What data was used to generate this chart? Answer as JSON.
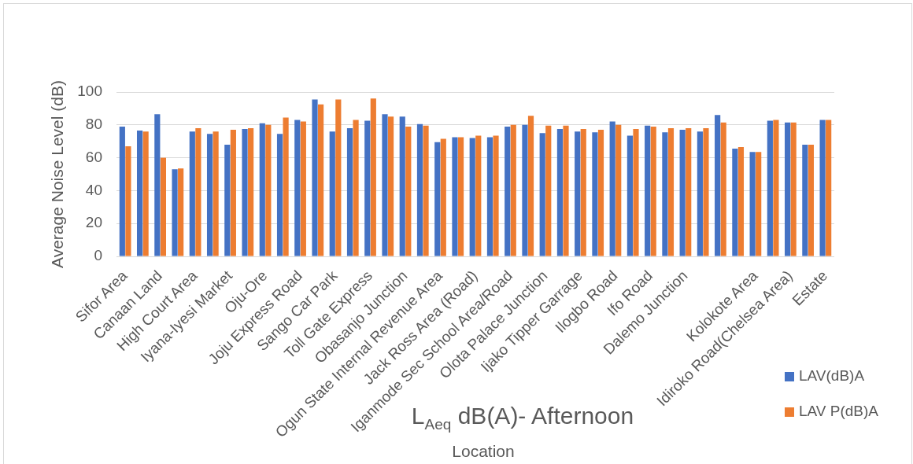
{
  "chart_data": {
    "type": "bar",
    "title": "L$_{Aeq}$ dB(A)- Afternoon",
    "xlabel": "Location",
    "ylabel": "Average Noise Level (dB)",
    "categories": [
      "Sifor Area",
      null,
      "Canaan Land",
      null,
      "High Court Area",
      null,
      "Iyana-Iyesi Market",
      null,
      "Oju-Ore",
      null,
      "Joju Express Road",
      null,
      "Sango Car Park",
      null,
      "Toll Gate Express",
      null,
      "Obasanjo Junction",
      null,
      "Ogun State Internal Revenue Area",
      null,
      "Jack Ross Area (Road)",
      null,
      "Iganmode Sec School Area/Road",
      null,
      "Olota Palace Junction",
      null,
      "Ijako Tipper Garrage",
      null,
      "Ilogbo Road",
      null,
      "Ifo Road",
      null,
      "Dalemo Junction",
      null,
      null,
      null,
      "Kolokote Area",
      null,
      "Idiroko Road(Chelsea Area)",
      null,
      "Estate"
    ],
    "series": [
      {
        "name": "LAV(dB)A",
        "color": "#4472c4",
        "values": [
          79,
          76.5,
          86.5,
          53,
          76,
          74.5,
          68,
          77.5,
          81,
          74.5,
          83,
          95.5,
          76,
          78,
          82.5,
          86.5,
          85,
          80.5,
          69.5,
          72.5,
          72,
          72.5,
          79,
          80,
          75,
          77.5,
          76,
          75.5,
          82,
          73.5,
          79.5,
          75.5,
          77,
          76,
          86,
          65.5,
          63.5,
          82.5,
          81.5,
          68,
          83
        ]
      },
      {
        "name": "LAV P(dB)A",
        "color": "#ed7d31",
        "values": [
          67,
          76,
          60,
          53.5,
          78,
          76,
          77,
          78,
          80,
          84.5,
          82,
          92.5,
          95.5,
          83,
          96,
          85,
          79,
          79.5,
          71.5,
          72.5,
          73.5,
          73.5,
          80,
          85.5,
          79.5,
          79.5,
          77.5,
          77,
          80,
          77.5,
          79,
          78,
          78,
          78,
          81.5,
          66.5,
          63.5,
          83,
          81.5,
          68,
          83
        ]
      }
    ],
    "ylim": [
      0,
      100
    ],
    "yticks": [
      0,
      20,
      40,
      60,
      80,
      100
    ],
    "grid": "y",
    "legend": "bottom right"
  }
}
